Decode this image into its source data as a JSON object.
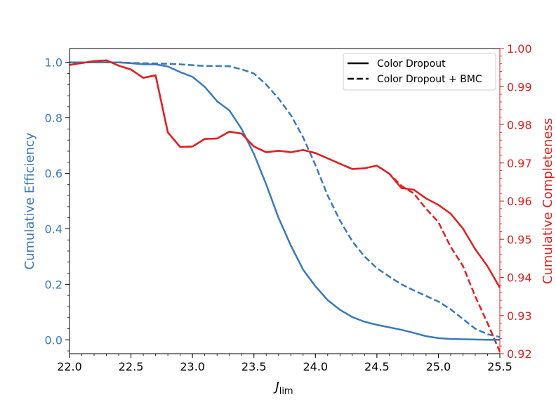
{
  "chart_data": {
    "type": "line",
    "xlabel": "J",
    "xlabel_sub": "lim",
    "ylabel_left": "Cumulative Efficiency",
    "ylabel_right": "Cumulative Completeness",
    "xlim": [
      22.0,
      25.5
    ],
    "ylim_left": [
      -0.05,
      1.05
    ],
    "ylim_right": [
      0.92,
      1.0
    ],
    "x_ticks": [
      "22.0",
      "22.5",
      "23.0",
      "23.5",
      "24.0",
      "24.5",
      "25.0",
      "25.5"
    ],
    "y_left_ticks": [
      "0.0",
      "0.2",
      "0.4",
      "0.6",
      "0.8",
      "1.0"
    ],
    "y_right_ticks": [
      "0.92",
      "0.93",
      "0.94",
      "0.95",
      "0.96",
      "0.97",
      "0.98",
      "0.99",
      "1.00"
    ],
    "colors": {
      "efficiency": "#3a7ab8",
      "completeness": "#e02020"
    },
    "legend": {
      "position": "top-right",
      "entries": [
        {
          "label": "Color Dropout",
          "style": "solid"
        },
        {
          "label": "Color Dropout + BMC",
          "style": "dashed"
        }
      ]
    },
    "x": [
      22.0,
      22.1,
      22.2,
      22.3,
      22.4,
      22.5,
      22.6,
      22.7,
      22.8,
      22.9,
      23.0,
      23.1,
      23.2,
      23.3,
      23.4,
      23.5,
      23.6,
      23.7,
      23.8,
      23.9,
      24.0,
      24.1,
      24.2,
      24.3,
      24.4,
      24.5,
      24.6,
      24.7,
      24.8,
      24.9,
      25.0,
      25.1,
      25.2,
      25.3,
      25.4,
      25.5
    ],
    "series": [
      {
        "name": "Color Dropout",
        "axis": "left",
        "style": "solid",
        "values": [
          1.0,
          1.0,
          1.0,
          1.0,
          1.0,
          0.997,
          0.993,
          0.993,
          0.985,
          0.965,
          0.948,
          0.912,
          0.86,
          0.827,
          0.76,
          0.67,
          0.56,
          0.44,
          0.34,
          0.253,
          0.193,
          0.143,
          0.108,
          0.082,
          0.065,
          0.054,
          0.045,
          0.036,
          0.025,
          0.013,
          0.006,
          0.003,
          0.002,
          0.001,
          0.0,
          0.0
        ]
      },
      {
        "name": "Color Dropout + BMC",
        "axis": "left",
        "style": "dashed",
        "values": [
          1.0,
          1.0,
          1.0,
          1.0,
          1.0,
          0.998,
          0.997,
          0.996,
          0.995,
          0.993,
          0.99,
          0.987,
          0.987,
          0.986,
          0.975,
          0.96,
          0.92,
          0.87,
          0.81,
          0.73,
          0.63,
          0.52,
          0.43,
          0.355,
          0.3,
          0.258,
          0.228,
          0.2,
          0.178,
          0.158,
          0.138,
          0.11,
          0.075,
          0.04,
          0.02,
          0.01
        ]
      },
      {
        "name": "Color Dropout",
        "axis": "right",
        "style": "solid",
        "values": [
          0.9957,
          0.9962,
          0.9967,
          0.9969,
          0.9955,
          0.9945,
          0.9923,
          0.993,
          0.978,
          0.9742,
          0.9743,
          0.9763,
          0.9764,
          0.9782,
          0.9777,
          0.9743,
          0.9728,
          0.9732,
          0.9728,
          0.9734,
          0.9726,
          0.9712,
          0.9698,
          0.9684,
          0.9686,
          0.9693,
          0.9672,
          0.9634,
          0.963,
          0.9607,
          0.959,
          0.9567,
          0.9528,
          0.9474,
          0.9429,
          0.9373
        ]
      },
      {
        "name": "Color Dropout + BMC",
        "axis": "right",
        "style": "dashed",
        "values": [
          0.9957,
          0.9962,
          0.9967,
          0.9969,
          0.9955,
          0.9945,
          0.9923,
          0.993,
          0.978,
          0.9742,
          0.9743,
          0.9763,
          0.9764,
          0.9782,
          0.9777,
          0.9743,
          0.9728,
          0.9732,
          0.9728,
          0.9734,
          0.9726,
          0.9712,
          0.9698,
          0.9684,
          0.9686,
          0.9693,
          0.9672,
          0.964,
          0.962,
          0.958,
          0.9545,
          0.948,
          0.943,
          0.935,
          0.928,
          0.9205
        ]
      }
    ]
  }
}
